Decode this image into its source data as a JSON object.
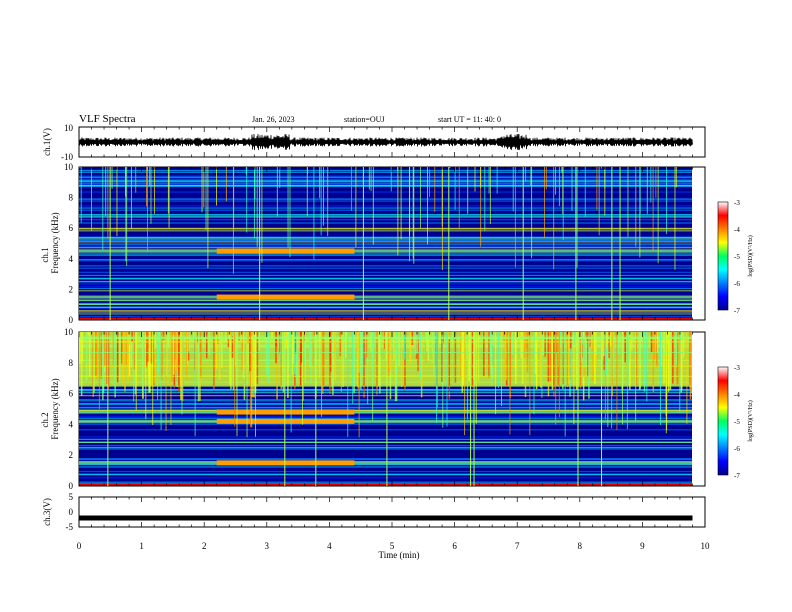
{
  "header": {
    "title": "VLF Spectra",
    "date": "Jan. 26, 2023",
    "station": "station=OUJ",
    "start_time": "start  UT =   11: 40: 0"
  },
  "colorbar": {
    "ticks": [
      "-3",
      "-4",
      "-5",
      "-6",
      "-7"
    ],
    "label": "log(PSD)(V²/Hz)",
    "range": [
      -7,
      -3
    ]
  },
  "chart_data": [
    {
      "type": "line",
      "panel": "ch1-waveform",
      "ylabel": "ch.1(V)",
      "yticks": [
        "10",
        "-10"
      ],
      "ylim": [
        -10,
        10
      ],
      "xlim": [
        0,
        10
      ],
      "description_values": {
        "baseline": 0,
        "approx_amplitude": 2
      }
    },
    {
      "type": "heatmap",
      "panel": "ch1-spectrogram",
      "ylabel": "Frequency (kHz)",
      "channel_label": "ch.1",
      "yticks": [
        "10",
        "8",
        "6",
        "4",
        "2",
        "0"
      ],
      "ylim": [
        0,
        10
      ],
      "xlim": [
        0,
        10
      ],
      "data_end_min": 9.8,
      "color_range": [
        -7,
        -3
      ],
      "bands_khz": [
        1.5,
        4.5
      ],
      "band_interval_min": [
        2.2,
        4.4
      ]
    },
    {
      "type": "heatmap",
      "panel": "ch2-spectrogram",
      "ylabel": "Frequency (kHz)",
      "channel_label": "ch.2",
      "yticks": [
        "10",
        "8",
        "6",
        "4",
        "2",
        "0"
      ],
      "ylim": [
        0,
        10
      ],
      "xlim": [
        0,
        10
      ],
      "data_end_min": 9.8,
      "color_range": [
        -7,
        -3
      ],
      "bands_khz": [
        1.5,
        4.2,
        4.8
      ],
      "band_interval_min": [
        2.2,
        4.4
      ]
    },
    {
      "type": "line",
      "panel": "ch3-waveform",
      "ylabel": "ch.3(V)",
      "yticks": [
        "5",
        "0",
        "-5"
      ],
      "ylim": [
        -5,
        5
      ],
      "xlim": [
        0,
        10
      ],
      "x": [
        0,
        9.8
      ],
      "y": [
        -2,
        -2
      ]
    }
  ],
  "xaxis": {
    "label": "Time (min)",
    "ticks": [
      "0",
      "1",
      "2",
      "3",
      "4",
      "5",
      "6",
      "7",
      "8",
      "9",
      "10"
    ],
    "range": [
      0,
      10
    ]
  }
}
